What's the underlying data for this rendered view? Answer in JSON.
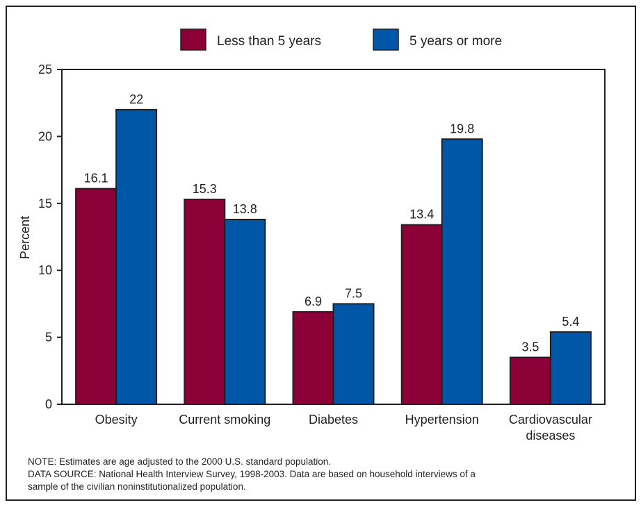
{
  "chart_data": {
    "type": "bar",
    "title": "",
    "xlabel": "",
    "ylabel": "Percent",
    "ylim": [
      0,
      25
    ],
    "yticks": [
      0,
      5,
      10,
      15,
      20,
      25
    ],
    "grid": false,
    "legend_position": "top",
    "categories": [
      "Obesity",
      "Current smoking",
      "Diabetes",
      "Hypertension",
      "Cardiovascular diseases"
    ],
    "category_lines": [
      [
        "Obesity"
      ],
      [
        "Current smoking"
      ],
      [
        "Diabetes"
      ],
      [
        "Hypertension"
      ],
      [
        "Cardiovascular",
        "diseases"
      ]
    ],
    "series": [
      {
        "name": "Less than 5 years",
        "color": "#8b0036",
        "values": [
          16.1,
          15.3,
          6.9,
          13.4,
          3.5
        ],
        "labels": [
          "16.1",
          "15.3",
          "6.9",
          "13.4",
          "3.5"
        ]
      },
      {
        "name": "5 years or more",
        "color": "#0057a8",
        "values": [
          22,
          13.8,
          7.5,
          19.8,
          5.4
        ],
        "labels": [
          "22",
          "13.8",
          "7.5",
          "19.8",
          "5.4"
        ]
      }
    ]
  },
  "notes": {
    "line1": "NOTE: Estimates are age adjusted to the 2000 U.S. standard population.",
    "line2": "DATA SOURCE: National Health Interview Survey, 1998-2003. Data are based on household interviews of a",
    "line3": "sample of the civilian noninstitutionalized population."
  }
}
